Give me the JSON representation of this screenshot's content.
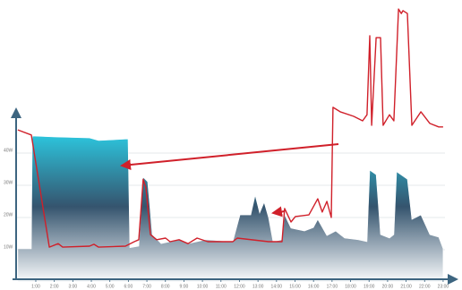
{
  "chart_data": {
    "type": "area-line",
    "xlim": [
      0,
      23.5
    ],
    "ylim": [
      0,
      85
    ],
    "xticks": [
      {
        "value": 1,
        "label": "1:00"
      },
      {
        "value": 2,
        "label": "2:00"
      },
      {
        "value": 3,
        "label": "3:00"
      },
      {
        "value": 4,
        "label": "4:00"
      },
      {
        "value": 5,
        "label": "5:00"
      },
      {
        "value": 6,
        "label": "6:00"
      },
      {
        "value": 7,
        "label": "7:00"
      },
      {
        "value": 8,
        "label": "8:00"
      },
      {
        "value": 9,
        "label": "9:00"
      },
      {
        "value": 10,
        "label": "10:00"
      },
      {
        "value": 11,
        "label": "11:00"
      },
      {
        "value": 12,
        "label": "12:00"
      },
      {
        "value": 13,
        "label": "13:00"
      },
      {
        "value": 14,
        "label": "14:00"
      },
      {
        "value": 15,
        "label": "15:00"
      },
      {
        "value": 16,
        "label": "16:00"
      },
      {
        "value": 17,
        "label": "17:00"
      },
      {
        "value": 18,
        "label": "18:00"
      },
      {
        "value": 19,
        "label": "19:00"
      },
      {
        "value": 20,
        "label": "20:00"
      },
      {
        "value": 21,
        "label": "21:00"
      },
      {
        "value": 22,
        "label": "22:00"
      },
      {
        "value": 23,
        "label": "23:00"
      }
    ],
    "yticks": [
      {
        "value": 10,
        "label": "10W"
      },
      {
        "value": 20,
        "label": "20W"
      },
      {
        "value": 30,
        "label": "30W"
      },
      {
        "value": 40,
        "label": "40W"
      }
    ],
    "grid": true,
    "series": [
      {
        "kind": "area",
        "color": "#2cc6de",
        "x": [
          0.03,
          0.76,
          0.81,
          1.97,
          3.9,
          4.39,
          5.98,
          6.08,
          6.56,
          6.8,
          7.04,
          7.29,
          7.77,
          8.74,
          9.22,
          10.19,
          11.64,
          12.03,
          12.61,
          12.85,
          13.09,
          13.33,
          13.57,
          13.81,
          14.3,
          14.44,
          14.78,
          15.51,
          15.99,
          16.23,
          16.72,
          17.2,
          17.68,
          18.41,
          18.89,
          19.04,
          19.38,
          19.62,
          20.1,
          20.34,
          20.49,
          21.07,
          21.31,
          21.8,
          22.28,
          22.76,
          23.0
        ],
        "values": [
          10.3,
          10.3,
          45.3,
          45.0,
          44.7,
          43.9,
          44.4,
          10.6,
          11.1,
          32.5,
          31.1,
          14.7,
          11.9,
          13.1,
          11.9,
          13.1,
          12.5,
          20.8,
          20.8,
          26.9,
          21.4,
          24.7,
          20.0,
          12.5,
          13.1,
          20.8,
          16.7,
          15.8,
          16.9,
          19.4,
          14.4,
          15.8,
          13.6,
          13.1,
          12.5,
          34.7,
          33.3,
          14.7,
          13.6,
          14.7,
          34.2,
          31.9,
          19.4,
          20.8,
          14.7,
          13.9,
          10.3
        ]
      },
      {
        "kind": "line",
        "color": "#d0202a",
        "x": [
          0.03,
          0.76,
          1.73,
          2.21,
          2.45,
          3.9,
          4.14,
          4.39,
          5.84,
          6.32,
          6.56,
          6.8,
          6.95,
          7.19,
          7.53,
          8.01,
          8.25,
          8.74,
          9.22,
          9.71,
          10.29,
          11.64,
          11.88,
          13.57,
          14.3,
          14.44,
          14.78,
          15.02,
          15.75,
          16.23,
          16.47,
          16.72,
          16.96,
          17.05,
          17.44,
          18.17,
          18.65,
          18.89,
          19.04,
          19.14,
          19.38,
          19.62,
          19.76,
          20.1,
          20.34,
          20.59,
          20.74,
          20.83,
          21.07,
          21.31,
          21.8,
          22.28,
          22.76,
          23.0
        ],
        "values": [
          47.2,
          45.6,
          10.8,
          11.9,
          10.8,
          11.1,
          11.7,
          10.8,
          11.1,
          12.5,
          13.1,
          31.9,
          29.2,
          14.7,
          13.1,
          13.6,
          12.5,
          13.1,
          11.9,
          13.6,
          12.5,
          12.5,
          13.6,
          12.5,
          12.5,
          22.8,
          18.6,
          20.3,
          20.8,
          25.8,
          21.7,
          25.0,
          20.0,
          54.2,
          52.8,
          51.4,
          50.0,
          51.9,
          76.4,
          48.6,
          75.8,
          75.8,
          48.6,
          51.9,
          50.0,
          84.7,
          83.3,
          84.2,
          83.3,
          48.6,
          52.8,
          49.2,
          48.1,
          48.1
        ]
      }
    ]
  }
}
